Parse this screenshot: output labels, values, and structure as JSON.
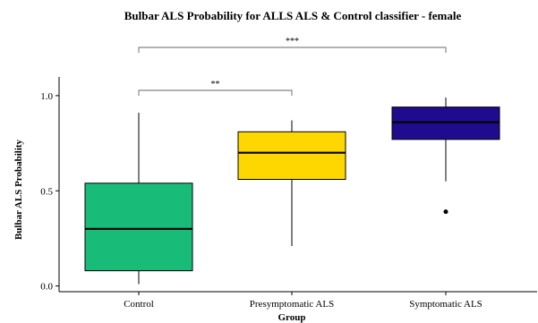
{
  "chart_data": {
    "type": "box",
    "title": "Bulbar ALS Probability for ALLS ALS & Control classifier - female",
    "xlabel": "Group",
    "ylabel": "Bulbar ALS Probability",
    "ylim": [
      -0.03,
      1.07
    ],
    "yticks": [
      0.0,
      0.5,
      1.0
    ],
    "ytick_labels": [
      "0.0",
      "0.5",
      "1.0"
    ],
    "grid": false,
    "legend": "none",
    "categories": [
      "Control",
      "Presymptomatic ALS",
      "Symptomatic ALS"
    ],
    "boxes": [
      {
        "category": "Control",
        "whisker_low": 0.01,
        "q1": 0.08,
        "median": 0.3,
        "q3": 0.54,
        "whisker_high": 0.91,
        "outliers": [],
        "color": "#18bc78"
      },
      {
        "category": "Presymptomatic ALS",
        "whisker_low": 0.21,
        "q1": 0.56,
        "median": 0.7,
        "q3": 0.81,
        "whisker_high": 0.87,
        "outliers": [],
        "color": "#ffd700"
      },
      {
        "category": "Symptomatic ALS",
        "whisker_low": 0.55,
        "q1": 0.77,
        "median": 0.86,
        "q3": 0.94,
        "whisker_high": 0.99,
        "outliers": [
          0.39
        ],
        "color": "#1e0b8e"
      }
    ],
    "significance": [
      {
        "from": "Control",
        "to": "Presymptomatic ALS",
        "label": "**",
        "y": 1.03
      },
      {
        "from": "Control",
        "to": "Symptomatic ALS",
        "label": "***",
        "y": 1.28
      }
    ]
  }
}
